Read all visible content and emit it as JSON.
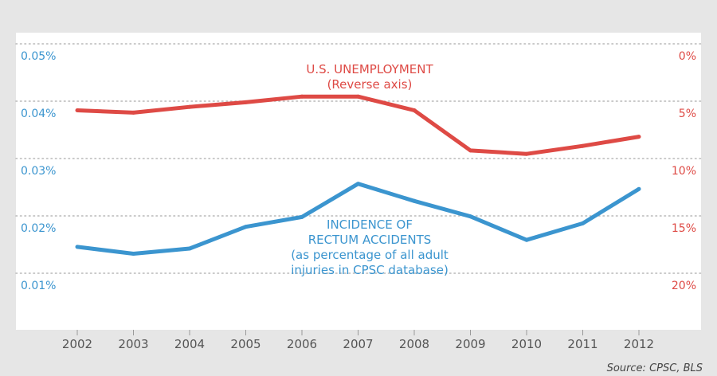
{
  "chart_data": {
    "type": "line",
    "x": [
      "2002",
      "2003",
      "2004",
      "2005",
      "2006",
      "2007",
      "2008",
      "2009",
      "2010",
      "2011",
      "2012"
    ],
    "y_left_ticks": [
      "0.05%",
      "0.04%",
      "0.03%",
      "0.02%",
      "0.01%"
    ],
    "y_left_range": [
      0.05,
      0.01
    ],
    "y_right_ticks": [
      "0%",
      "5%",
      "10%",
      "15%",
      "20%"
    ],
    "y_right_range": [
      0,
      20
    ],
    "y_right_reversed": true,
    "grid": "dotted horizontal",
    "series": [
      {
        "axis": "right",
        "color": "#de4a45",
        "label_lines": [
          "U.S. UNEMPLOYMENT",
          "(Reverse axis)"
        ],
        "values": [
          5.8,
          6.0,
          5.5,
          5.1,
          4.6,
          4.6,
          5.8,
          9.3,
          9.6,
          8.9,
          8.1
        ]
      },
      {
        "axis": "left",
        "color": "#3b95cf",
        "label_lines": [
          "INCIDENCE OF",
          "RECTUM ACCIDENTS",
          "(as percentage of all adult",
          "injuries in CPSC database)"
        ],
        "values": [
          0.0146,
          0.0134,
          0.0143,
          0.0181,
          0.0198,
          0.0256,
          0.0226,
          0.0199,
          0.0158,
          0.0187,
          0.0247
        ]
      }
    ],
    "source": "Source: CPSC, BLS"
  }
}
